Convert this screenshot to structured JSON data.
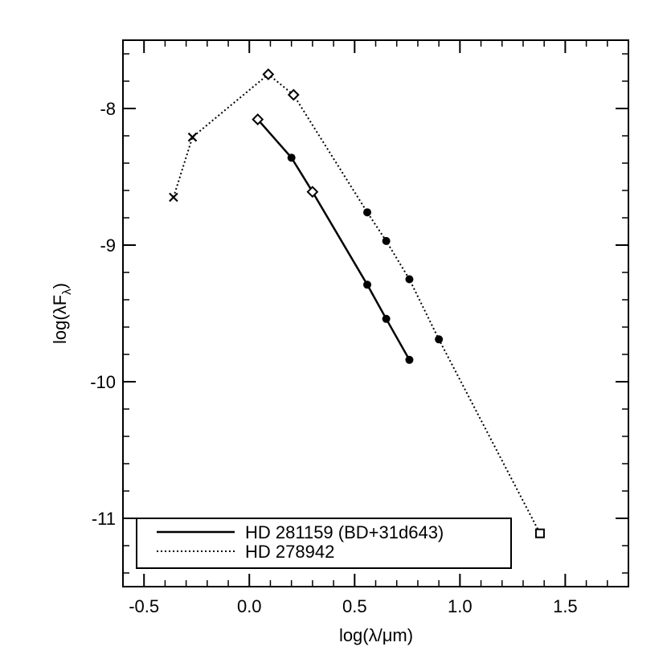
{
  "chart_data": {
    "type": "line",
    "xlabel": "log(λ/μm)",
    "ylabel_main": "log(λF",
    "ylabel_sub": "λ",
    "ylabel_close": ")",
    "xlim": [
      -0.6,
      1.8
    ],
    "ylim": [
      -11.5,
      -7.5
    ],
    "xticks": [
      {
        "value": -0.5,
        "label": "-0.5"
      },
      {
        "value": 0.0,
        "label": "0.0"
      },
      {
        "value": 0.5,
        "label": "0.5"
      },
      {
        "value": 1.0,
        "label": "1.0"
      },
      {
        "value": 1.5,
        "label": "1.5"
      }
    ],
    "yticks": [
      {
        "value": -8,
        "label": "-8"
      },
      {
        "value": -9,
        "label": "-9"
      },
      {
        "value": -10,
        "label": "-10"
      },
      {
        "value": -11,
        "label": "-11"
      }
    ],
    "grid": false,
    "legend_position": "bottom-left",
    "series": [
      {
        "name": "HD 281159 (BD+31d643)",
        "line_style": "solid",
        "points": [
          {
            "x": 0.04,
            "y": -8.08,
            "marker": "diamond"
          },
          {
            "x": 0.2,
            "y": -8.36,
            "marker": "circle"
          },
          {
            "x": 0.3,
            "y": -8.61,
            "marker": "diamond"
          },
          {
            "x": 0.56,
            "y": -9.29,
            "marker": "circle"
          },
          {
            "x": 0.65,
            "y": -9.54,
            "marker": "circle"
          },
          {
            "x": 0.76,
            "y": -9.84,
            "marker": "circle"
          }
        ]
      },
      {
        "name": "HD 278942",
        "line_style": "dotted",
        "points": [
          {
            "x": -0.36,
            "y": -8.65,
            "marker": "x"
          },
          {
            "x": -0.27,
            "y": -8.21,
            "marker": "x"
          },
          {
            "x": 0.09,
            "y": -7.75,
            "marker": "diamond"
          },
          {
            "x": 0.21,
            "y": -7.9,
            "marker": "diamond"
          },
          {
            "x": 0.56,
            "y": -8.76,
            "marker": "circle"
          },
          {
            "x": 0.65,
            "y": -8.97,
            "marker": "circle"
          },
          {
            "x": 0.76,
            "y": -9.25,
            "marker": "circle"
          },
          {
            "x": 0.9,
            "y": -9.69,
            "marker": "circle"
          },
          {
            "x": 1.38,
            "y": -11.11,
            "marker": "square"
          }
        ]
      }
    ]
  }
}
